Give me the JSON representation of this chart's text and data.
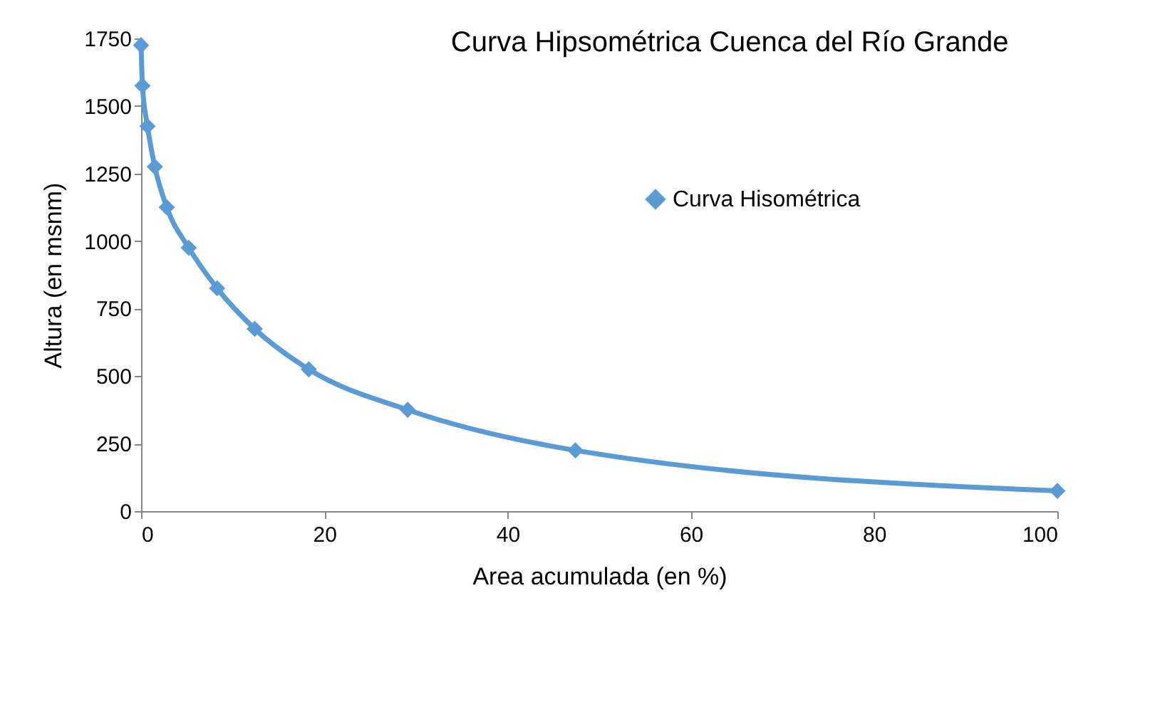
{
  "chart_data": {
    "type": "line",
    "title": "Curva Hipsométrica Cuenca del Río Grande",
    "xlabel": "Area acumulada (en %)",
    "ylabel": "Altura (en msnm)",
    "x": [
      0,
      0.15,
      0.7,
      1.5,
      2.8,
      5.2,
      8.3,
      12.4,
      18.3,
      29.1,
      47.4,
      100
    ],
    "series": [
      {
        "name": "Curva Hisométrica",
        "color": "#5b9bd5",
        "values": [
          1725,
          1575,
          1425,
          1275,
          1125,
          975,
          825,
          675,
          525,
          375,
          225,
          75
        ]
      }
    ],
    "xlim": [
      0,
      100
    ],
    "xticks": [
      0,
      20,
      40,
      60,
      80,
      100
    ],
    "ylim": [
      0,
      1750
    ],
    "yticks": [
      0,
      250,
      500,
      750,
      1000,
      1250,
      1500,
      1750
    ],
    "grid": false,
    "legend": "right",
    "marker": "diamond",
    "line_style": "solid"
  }
}
